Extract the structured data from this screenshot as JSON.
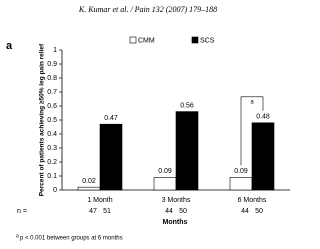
{
  "header": "K. Kumar et al. / Pain 132 (2007) 179–188",
  "chart_data": {
    "type": "bar",
    "panel": "a",
    "y_label": "Percent of patients achieving ≥50% leg pain relief",
    "x_label": "Months",
    "categories": [
      "1 Month",
      "3 Months",
      "6 Months"
    ],
    "series": [
      {
        "name": "CMM",
        "color": "#ffffff",
        "values": [
          0.02,
          0.09,
          0.09
        ],
        "n": [
          47,
          44,
          44
        ]
      },
      {
        "name": "SCS",
        "color": "#000000",
        "values": [
          0.47,
          0.56,
          0.48
        ],
        "n": [
          51,
          50,
          50
        ]
      }
    ],
    "n_label": "n =",
    "ylim": [
      0,
      1
    ],
    "yticks": [
      0,
      0.1,
      0.2,
      0.3,
      0.4,
      0.5,
      0.6,
      0.7,
      0.8,
      0.9,
      1
    ],
    "grid": false,
    "annotation": "a",
    "footnote": {
      "marker": "a",
      "text": "p < 0.001 between groups at 6 months"
    }
  }
}
